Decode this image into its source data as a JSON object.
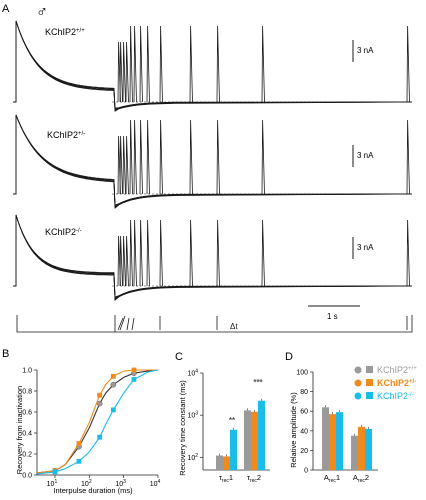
{
  "panel_a": {
    "label": "A",
    "sex_symbol": "♂",
    "traces": [
      {
        "genotype_text": "KChIP2",
        "genotype_sup": "+/+"
      },
      {
        "genotype_text": "KChIP2",
        "genotype_sup": "+/-"
      },
      {
        "genotype_text": "KChIP2",
        "genotype_sup": "-/-"
      }
    ],
    "scale_current": "3 nA",
    "scale_time": "1 s",
    "protocol_label": "Δt"
  },
  "panel_b": {
    "label": "B",
    "ylabel": "Recovery from inactivation",
    "xlabel": "Interpulse duration (ms)",
    "y_ticks": [
      "0.0",
      "0.2",
      "0.4",
      "0.6",
      "0.8",
      "1.0"
    ],
    "x_ticks": [
      {
        "base": "10",
        "exp": "1"
      },
      {
        "base": "10",
        "exp": "2"
      },
      {
        "base": "10",
        "exp": "3"
      },
      {
        "base": "10",
        "exp": "4"
      }
    ]
  },
  "panel_c": {
    "label": "C",
    "ylabel": "Recovery time constant (ms)",
    "y_ticks": [
      {
        "base": "10",
        "exp": "2"
      },
      {
        "base": "10",
        "exp": "3"
      },
      {
        "base": "10",
        "exp": "4"
      }
    ],
    "categories": [
      {
        "main": "τ",
        "sub": "rec",
        "tail": "1"
      },
      {
        "main": "τ",
        "sub": "rec",
        "tail": "2"
      }
    ],
    "annotations": [
      "**",
      "***"
    ]
  },
  "panel_d": {
    "label": "D",
    "ylabel": "Relative amplitude (%)",
    "y_ticks": [
      "0",
      "20",
      "40",
      "60",
      "80",
      "100"
    ],
    "categories": [
      {
        "main": "A",
        "sub": "rec",
        "tail": "1"
      },
      {
        "main": "A",
        "sub": "rec",
        "tail": "2"
      }
    ],
    "legend": [
      {
        "text": "KChIP2",
        "sup": "+/+",
        "color": "#9a9a9a"
      },
      {
        "text": "KChIP2",
        "sup": "+/-",
        "color": "#f08a1c"
      },
      {
        "text": "KChIP2",
        "sup": "-/-",
        "color": "#1bbde8"
      }
    ]
  },
  "colors": {
    "wt": "#9a9a9a",
    "het": "#f08a1c",
    "ko": "#1bbde8",
    "trace": "#1a1a1a"
  },
  "chart_data": [
    {
      "type": "line",
      "panel": "B",
      "xscale": "log",
      "xlim": [
        3,
        10000
      ],
      "ylim": [
        0,
        1
      ],
      "series": [
        {
          "color": "#9a9a9a",
          "x": [
            3,
            10,
            20,
            50,
            100,
            200,
            300,
            500,
            1000,
            2000,
            5000,
            10000
          ],
          "y": [
            0.02,
            0.04,
            0.1,
            0.27,
            0.45,
            0.68,
            0.78,
            0.86,
            0.93,
            0.97,
            0.99,
            1.0
          ]
        },
        {
          "color": "#f08a1c",
          "x": [
            3,
            10,
            20,
            50,
            100,
            200,
            300,
            500,
            1000,
            2000,
            5000,
            10000
          ],
          "y": [
            0.02,
            0.04,
            0.1,
            0.3,
            0.5,
            0.76,
            0.86,
            0.94,
            0.99,
            1.0,
            1.0,
            1.0
          ]
        },
        {
          "color": "#1bbde8",
          "x": [
            3,
            10,
            20,
            50,
            100,
            200,
            300,
            500,
            1000,
            2000,
            5000,
            10000
          ],
          "y": [
            0.01,
            0.03,
            0.06,
            0.13,
            0.22,
            0.36,
            0.48,
            0.62,
            0.78,
            0.91,
            0.98,
            1.0
          ]
        }
      ]
    },
    {
      "type": "bar",
      "panel": "C",
      "yscale": "log",
      "ylim": [
        50,
        10000
      ],
      "series": [
        {
          "color": "#9a9a9a",
          "values": [
            110,
            1300
          ]
        },
        {
          "color": "#f08a1c",
          "values": [
            105,
            1200
          ]
        },
        {
          "color": "#1bbde8",
          "values": [
            450,
            2200
          ]
        }
      ]
    },
    {
      "type": "bar",
      "panel": "D",
      "ylim": [
        0,
        100
      ],
      "series": [
        {
          "color": "#9a9a9a",
          "values": [
            64,
            35
          ]
        },
        {
          "color": "#f08a1c",
          "values": [
            57,
            44
          ]
        },
        {
          "color": "#1bbde8",
          "values": [
            59,
            42
          ]
        }
      ]
    }
  ]
}
